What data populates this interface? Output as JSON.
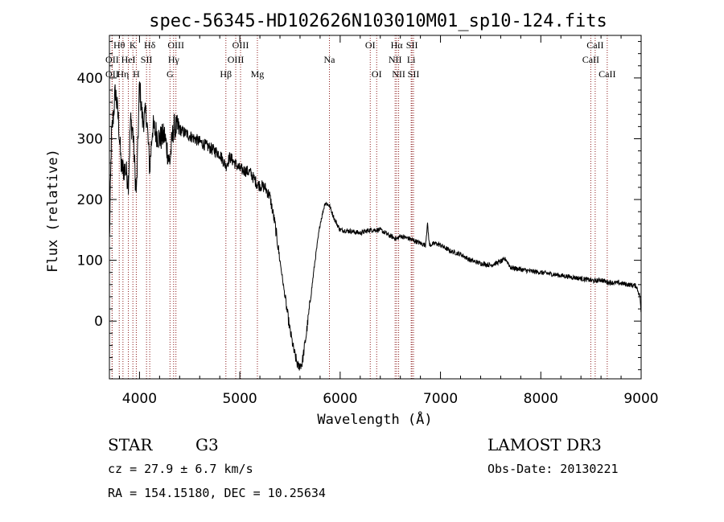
{
  "chart_data": {
    "type": "line",
    "title": "spec-56345-HD102626N103010M01_sp10-124.fits",
    "xlabel": "Wavelength (Å)",
    "ylabel": "Flux (relative)",
    "xlim": [
      3700,
      9000
    ],
    "ylim": [
      -95,
      470
    ],
    "x_ticks": [
      4000,
      5000,
      6000,
      7000,
      8000,
      9000
    ],
    "y_ticks": [
      0,
      100,
      200,
      300,
      400
    ],
    "line_color": "#8b1a1a",
    "spectrum_anchors": [
      [
        3700,
        130
      ],
      [
        3720,
        300
      ],
      [
        3760,
        380
      ],
      [
        3790,
        330
      ],
      [
        3820,
        250
      ],
      [
        3860,
        250
      ],
      [
        3890,
        230
      ],
      [
        3910,
        330
      ],
      [
        3935,
        310
      ],
      [
        3960,
        230
      ],
      [
        3970,
        210
      ],
      [
        3990,
        330
      ],
      [
        4000,
        390
      ],
      [
        4030,
        330
      ],
      [
        4070,
        340
      ],
      [
        4102,
        250
      ],
      [
        4130,
        320
      ],
      [
        4200,
        300
      ],
      [
        4250,
        305
      ],
      [
        4300,
        260
      ],
      [
        4340,
        320
      ],
      [
        4400,
        315
      ],
      [
        4500,
        305
      ],
      [
        4600,
        295
      ],
      [
        4700,
        285
      ],
      [
        4800,
        275
      ],
      [
        4861,
        255
      ],
      [
        4900,
        270
      ],
      [
        5000,
        250
      ],
      [
        5100,
        245
      ],
      [
        5175,
        225
      ],
      [
        5250,
        220
      ],
      [
        5300,
        205
      ],
      [
        5350,
        160
      ],
      [
        5400,
        100
      ],
      [
        5450,
        40
      ],
      [
        5500,
        -15
      ],
      [
        5540,
        -50
      ],
      [
        5580,
        -75
      ],
      [
        5620,
        -70
      ],
      [
        5660,
        -25
      ],
      [
        5700,
        30
      ],
      [
        5750,
        100
      ],
      [
        5800,
        160
      ],
      [
        5850,
        195
      ],
      [
        5893,
        190
      ],
      [
        5950,
        165
      ],
      [
        6000,
        150
      ],
      [
        6100,
        148
      ],
      [
        6200,
        145
      ],
      [
        6300,
        150
      ],
      [
        6400,
        150
      ],
      [
        6500,
        140
      ],
      [
        6563,
        135
      ],
      [
        6600,
        140
      ],
      [
        6700,
        135
      ],
      [
        6800,
        128
      ],
      [
        6850,
        125
      ],
      [
        6870,
        160
      ],
      [
        6890,
        125
      ],
      [
        6950,
        128
      ],
      [
        7000,
        125
      ],
      [
        7100,
        115
      ],
      [
        7200,
        110
      ],
      [
        7300,
        100
      ],
      [
        7400,
        95
      ],
      [
        7500,
        92
      ],
      [
        7600,
        98
      ],
      [
        7650,
        102
      ],
      [
        7700,
        88
      ],
      [
        7800,
        85
      ],
      [
        7900,
        82
      ],
      [
        8000,
        80
      ],
      [
        8200,
        75
      ],
      [
        8400,
        70
      ],
      [
        8542,
        66
      ],
      [
        8600,
        68
      ],
      [
        8662,
        64
      ],
      [
        8800,
        62
      ],
      [
        8950,
        58
      ],
      [
        8990,
        40
      ],
      [
        9000,
        5
      ]
    ],
    "spectral_lines": [
      {
        "label": "OII",
        "wavelength": 3727,
        "row": 1
      },
      {
        "label": "OII",
        "wavelength": 3727,
        "row": 2
      },
      {
        "label": "Hθ",
        "wavelength": 3798,
        "row": 0
      },
      {
        "label": "Hη",
        "wavelength": 3835,
        "row": 2
      },
      {
        "label": "HeI",
        "wavelength": 3889,
        "row": 1
      },
      {
        "label": "K",
        "wavelength": 3934,
        "row": 0
      },
      {
        "label": "H",
        "wavelength": 3968,
        "row": 2
      },
      {
        "label": "SII",
        "wavelength": 4070,
        "row": 1
      },
      {
        "label": "Hδ",
        "wavelength": 4102,
        "row": 0
      },
      {
        "label": "G",
        "wavelength": 4304,
        "row": 2
      },
      {
        "label": "Hγ",
        "wavelength": 4340,
        "row": 1
      },
      {
        "label": "OIII",
        "wavelength": 4363,
        "row": 0
      },
      {
        "label": "Hβ",
        "wavelength": 4861,
        "row": 2
      },
      {
        "label": "OIII",
        "wavelength": 4959,
        "row": 1
      },
      {
        "label": "OIII",
        "wavelength": 5007,
        "row": 0
      },
      {
        "label": "Mg",
        "wavelength": 5175,
        "row": 2
      },
      {
        "label": "Na",
        "wavelength": 5893,
        "row": 1
      },
      {
        "label": "OI",
        "wavelength": 6300,
        "row": 0
      },
      {
        "label": "OI",
        "wavelength": 6364,
        "row": 2
      },
      {
        "label": "NII",
        "wavelength": 6548,
        "row": 1
      },
      {
        "label": "Hα",
        "wavelength": 6563,
        "row": 0
      },
      {
        "label": "NII",
        "wavelength": 6583,
        "row": 2
      },
      {
        "label": "SII",
        "wavelength": 6716,
        "row": 0
      },
      {
        "label": "Li",
        "wavelength": 6708,
        "row": 1
      },
      {
        "label": "SII",
        "wavelength": 6731,
        "row": 2
      },
      {
        "label": "CaII",
        "wavelength": 8498,
        "row": 1
      },
      {
        "label": "CaII",
        "wavelength": 8542,
        "row": 0
      },
      {
        "label": "CaII",
        "wavelength": 8662,
        "row": 2
      }
    ]
  },
  "info": {
    "object_class": "STAR",
    "subclass": "G3",
    "survey": "LAMOST DR3",
    "cz": "cz = 27.9 ± 6.7 km/s",
    "obs_date": "Obs-Date: 20130221",
    "coords": "RA = 154.15180, DEC =  10.25634"
  }
}
